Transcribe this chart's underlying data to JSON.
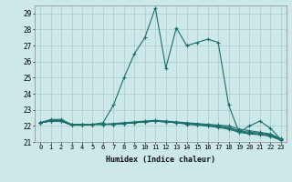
{
  "title": "",
  "xlabel": "Humidex (Indice chaleur)",
  "bg_color": "#cce8e8",
  "line_color": "#1a6e6e",
  "grid_color": "#aacccc",
  "ylim": [
    21,
    29.5
  ],
  "xlim": [
    -0.5,
    23.5
  ],
  "yticks": [
    21,
    22,
    23,
    24,
    25,
    26,
    27,
    28,
    29
  ],
  "xticks": [
    0,
    1,
    2,
    3,
    4,
    5,
    6,
    7,
    8,
    9,
    10,
    11,
    12,
    13,
    14,
    15,
    16,
    17,
    18,
    19,
    20,
    21,
    22,
    23
  ],
  "series": [
    [
      22.2,
      22.4,
      22.4,
      22.1,
      22.1,
      22.1,
      22.2,
      23.3,
      25.0,
      26.5,
      27.5,
      29.35,
      25.6,
      28.1,
      27.0,
      27.2,
      27.4,
      27.2,
      23.3,
      21.6,
      22.0,
      22.3,
      21.85,
      21.15
    ],
    [
      22.2,
      22.35,
      22.35,
      22.05,
      22.05,
      22.1,
      22.1,
      22.15,
      22.2,
      22.25,
      22.3,
      22.35,
      22.3,
      22.25,
      22.2,
      22.15,
      22.1,
      22.05,
      22.0,
      21.8,
      21.7,
      21.6,
      21.5,
      21.2
    ],
    [
      22.2,
      22.3,
      22.3,
      22.05,
      22.05,
      22.1,
      22.1,
      22.1,
      22.15,
      22.2,
      22.25,
      22.3,
      22.25,
      22.2,
      22.15,
      22.1,
      22.05,
      22.0,
      21.9,
      21.7,
      21.6,
      21.55,
      21.45,
      21.15
    ],
    [
      22.2,
      22.3,
      22.3,
      22.05,
      22.05,
      22.1,
      22.1,
      22.1,
      22.15,
      22.2,
      22.25,
      22.3,
      22.25,
      22.2,
      22.15,
      22.1,
      22.0,
      21.95,
      21.85,
      21.65,
      21.55,
      21.5,
      21.4,
      21.15
    ],
    [
      22.2,
      22.3,
      22.3,
      22.05,
      22.05,
      22.1,
      22.1,
      22.1,
      22.15,
      22.2,
      22.25,
      22.3,
      22.25,
      22.2,
      22.1,
      22.05,
      22.0,
      21.9,
      21.8,
      21.6,
      21.5,
      21.45,
      21.35,
      21.1
    ]
  ]
}
